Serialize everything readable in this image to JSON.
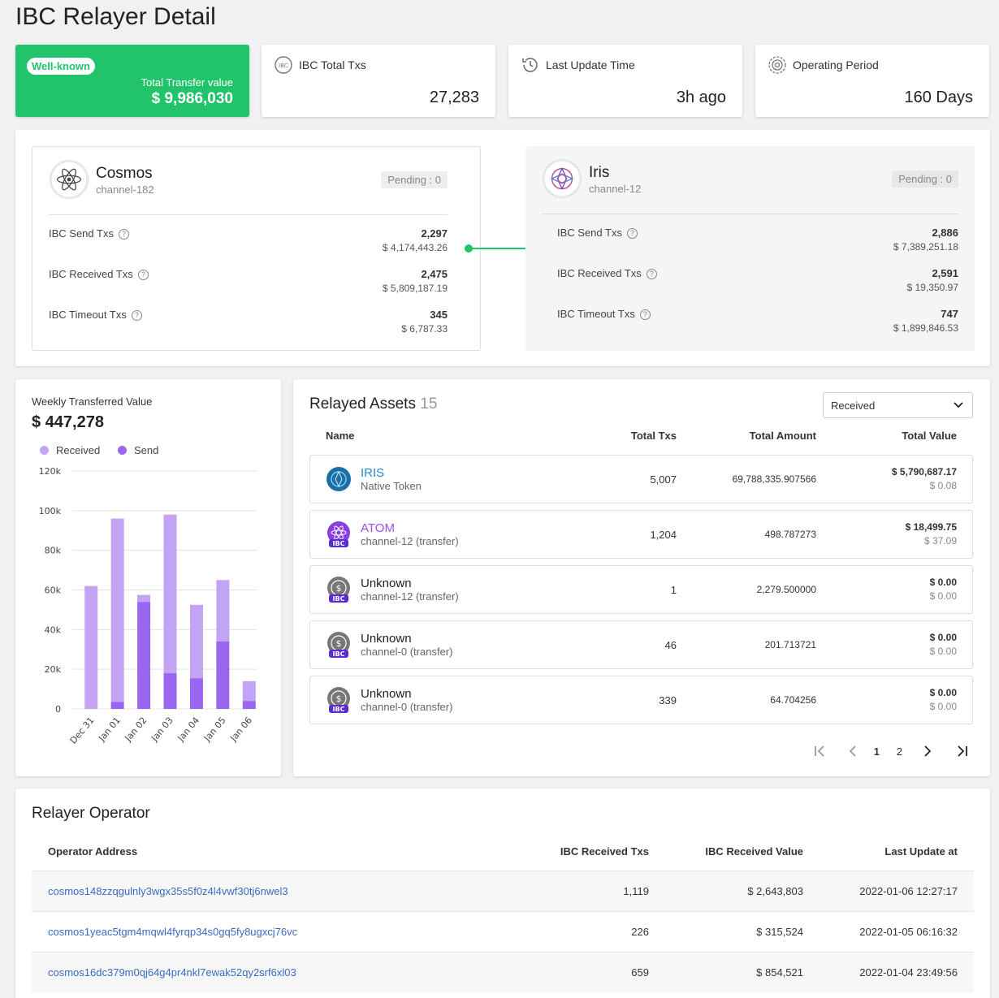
{
  "page": {
    "title": "IBC Relayer Detail"
  },
  "stats": {
    "badge": "Well-known",
    "total_transfer_label": "Total Transfer value",
    "total_transfer_value": "$ 9,986,030",
    "ibc_total_txs_label": "IBC Total Txs",
    "ibc_total_txs_value": "27,283",
    "last_update_label": "Last Update Time",
    "last_update_value": "3h ago",
    "operating_period_label": "Operating Period",
    "operating_period_value": "160 Days"
  },
  "chains": {
    "left": {
      "name": "Cosmos",
      "channel": "channel-182",
      "pending": "Pending : 0",
      "rows": [
        {
          "label": "IBC Send Txs",
          "count": "2,297",
          "value": "$ 4,174,443.26"
        },
        {
          "label": "IBC Received Txs",
          "count": "2,475",
          "value": "$ 5,809,187.19"
        },
        {
          "label": "IBC Timeout Txs",
          "count": "345",
          "value": "$ 6,787.33"
        }
      ]
    },
    "right": {
      "name": "Iris",
      "channel": "channel-12",
      "pending": "Pending : 0",
      "rows": [
        {
          "label": "IBC Send Txs",
          "count": "2,886",
          "value": "$ 7,389,251.18"
        },
        {
          "label": "IBC Received Txs",
          "count": "2,591",
          "value": "$ 19,350.97"
        },
        {
          "label": "IBC Timeout Txs",
          "count": "747",
          "value": "$ 1,899,846.53"
        }
      ]
    }
  },
  "weekly": {
    "title": "Weekly Transferred Value",
    "total": "$ 447,278",
    "legend_received": "Received",
    "legend_send": "Send"
  },
  "chart_data": {
    "type": "bar",
    "stacked": true,
    "categories": [
      "Dec 31",
      "Jan 01",
      "Jan 02",
      "Jan 03",
      "Jan 04",
      "Jan 05",
      "Jan 06"
    ],
    "series": [
      {
        "name": "Send",
        "values": [
          0,
          3500,
          54000,
          18000,
          15500,
          34000,
          4000
        ]
      },
      {
        "name": "Received",
        "values": [
          62000,
          92500,
          3500,
          80000,
          37000,
          31000,
          10000
        ]
      }
    ],
    "ylim": [
      0,
      120000
    ],
    "yticks": [
      "0",
      "20k",
      "40k",
      "60k",
      "80k",
      "100k",
      "120k"
    ],
    "colors": {
      "received": "#c3a3f3",
      "send": "#9a66f0"
    }
  },
  "assets": {
    "title": "Relayed Assets",
    "count": "15",
    "filter_value": "Received",
    "headers": {
      "name": "Name",
      "txs": "Total Txs",
      "amount": "Total Amount",
      "value": "Total Value"
    },
    "rows": [
      {
        "name": "IRIS",
        "sub": "Native Token",
        "txs": "5,007",
        "amount": "69,788,335.907566",
        "value": "$ 5,790,687.17",
        "usd": "$ 0.08",
        "color": "#2a8ac7"
      },
      {
        "name": "ATOM",
        "sub": "channel-12 (transfer)",
        "txs": "1,204",
        "amount": "498.787273",
        "value": "$ 18,499.75",
        "usd": "$ 37.09",
        "color": "#9a4ef0"
      },
      {
        "name": "Unknown",
        "sub": "channel-12 (transfer)",
        "txs": "1",
        "amount": "2,279.500000",
        "value": "$ 0.00",
        "usd": "$ 0.00",
        "color": "#222222"
      },
      {
        "name": "Unknown",
        "sub": "channel-0 (transfer)",
        "txs": "46",
        "amount": "201.713721",
        "value": "$ 0.00",
        "usd": "$ 0.00",
        "color": "#222222"
      },
      {
        "name": "Unknown",
        "sub": "channel-0 (transfer)",
        "txs": "339",
        "amount": "64.704256",
        "value": "$ 0.00",
        "usd": "$ 0.00",
        "color": "#222222"
      }
    ],
    "pagination": {
      "page1": "1",
      "page2": "2"
    }
  },
  "operators": {
    "title": "Relayer Operator",
    "headers": {
      "address": "Operator Address",
      "txs": "IBC Received Txs",
      "value": "IBC Received Value",
      "updated": "Last Update at"
    },
    "rows": [
      {
        "address": "cosmos148zzqgulnly3wgx35s5f0z4l4vwf30tj6nwel3",
        "txs": "1,119",
        "value": "$ 2,643,803",
        "updated": "2022-01-06 12:27:17"
      },
      {
        "address": "cosmos1yeac5tgm4mqwl4fyrqp34s0gq5fy8ugxcj76vc",
        "txs": "226",
        "value": "$ 315,524",
        "updated": "2022-01-05 06:16:32"
      },
      {
        "address": "cosmos16dc379m0qj64g4pr4nkl7ewak52qy2srf6xl03",
        "txs": "659",
        "value": "$ 854,521",
        "updated": "2022-01-04 23:49:56"
      }
    ]
  }
}
